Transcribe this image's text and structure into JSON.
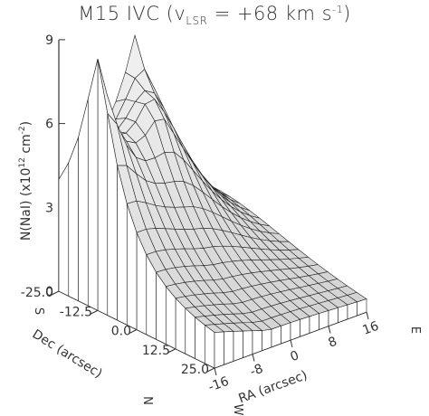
{
  "chart_data": {
    "type": "surface",
    "title": {
      "main": "M15 IVC (v",
      "sub": "LSR",
      "mid": " = +68 km s",
      "sup": "-1",
      "end": ")"
    },
    "zlabel": {
      "pre": "N(NaI) (x10",
      "sup1": "12",
      "mid": " cm",
      "sup2": "-2",
      "end": ")"
    },
    "xlabel": "RA (arcsec)",
    "ylabel": "Dec (arcsec)",
    "x_ticks": [
      "-16",
      "-8",
      "0",
      "8",
      "16"
    ],
    "y_ticks": [
      "-25.0",
      "-12.5",
      "0.0",
      "12.5",
      "25.0"
    ],
    "z_ticks": [
      "0",
      "3",
      "6",
      "9"
    ],
    "x_range": [
      -16,
      16
    ],
    "y_range": [
      -25,
      25
    ],
    "z_range": [
      0,
      9
    ],
    "direction_labels": {
      "x_min": "W",
      "x_max": "E",
      "y_min": "S",
      "y_max": "N"
    },
    "grid_nx": 17,
    "grid_ny": 17,
    "peaks": [
      {
        "x": -16,
        "y": -12.5,
        "z": 7.2,
        "spread": 0.16
      },
      {
        "x": 0,
        "y": -25.0,
        "z": 5.6,
        "spread": 0.22
      },
      {
        "x": -3,
        "y": -14,
        "z": 3.6,
        "spread": 0.28
      }
    ],
    "background_level": 0.8,
    "front_edge_level": 1.8
  }
}
